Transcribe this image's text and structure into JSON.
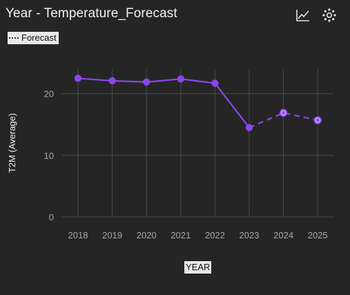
{
  "header": {
    "title": "Year - Temperature_Forecast",
    "icons": [
      "line-chart-icon",
      "settings-icon"
    ]
  },
  "legend": {
    "label": "Forecast"
  },
  "colors": {
    "series": "#8b46ea",
    "background": "#252525",
    "grid": "#4a4a4a"
  },
  "chart_data": {
    "type": "line",
    "title": "Year - Temperature_Forecast",
    "xlabel": "YEAR",
    "ylabel": "T2M (Average)",
    "categories": [
      "2018",
      "2019",
      "2020",
      "2021",
      "2022",
      "2023",
      "2024",
      "2025"
    ],
    "ylim": [
      0,
      24
    ],
    "yticks": [
      0,
      10,
      20
    ],
    "grid": true,
    "legend_position": "top-left",
    "series": [
      {
        "style": "solid",
        "x": [
          "2018",
          "2019",
          "2020",
          "2021",
          "2022",
          "2023"
        ],
        "values": [
          22.5,
          22.1,
          21.9,
          22.4,
          21.7,
          14.5
        ]
      },
      {
        "name": "Forecast",
        "style": "dashed",
        "x": [
          "2023",
          "2024",
          "2025"
        ],
        "values": [
          14.5,
          16.9,
          15.7
        ]
      }
    ]
  }
}
